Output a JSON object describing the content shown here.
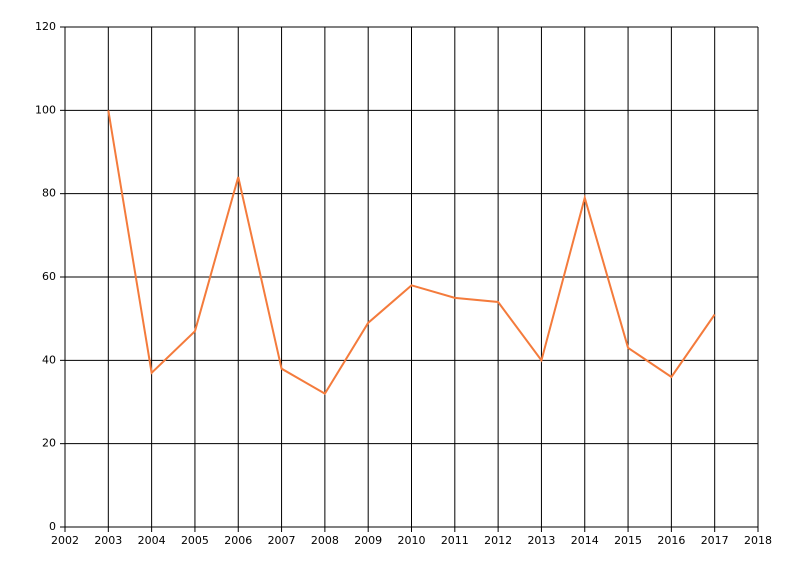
{
  "chart_data": {
    "type": "line",
    "x": [
      2003,
      2004,
      2005,
      2006,
      2007,
      2008,
      2009,
      2010,
      2011,
      2012,
      2013,
      2014,
      2015,
      2016,
      2017
    ],
    "series": [
      {
        "color": "#f47b3c",
        "values": [
          100,
          37,
          47,
          84,
          38,
          32,
          49,
          58,
          55,
          54,
          40,
          79,
          43,
          36,
          51
        ]
      }
    ],
    "xlim": [
      2002,
      2018
    ],
    "xticks": [
      2002,
      2003,
      2004,
      2005,
      2006,
      2007,
      2008,
      2009,
      2010,
      2011,
      2012,
      2013,
      2014,
      2015,
      2016,
      2017,
      2018
    ],
    "ylim": [
      0,
      120
    ],
    "yticks": [
      0,
      20,
      40,
      60,
      80,
      100,
      120
    ],
    "grid": true
  }
}
